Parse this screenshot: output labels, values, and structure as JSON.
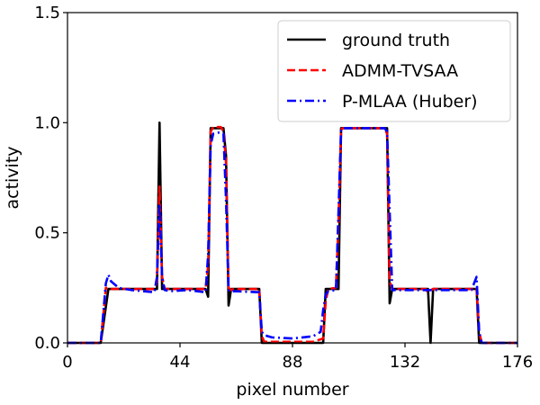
{
  "chart_data": {
    "type": "line",
    "title": "",
    "xlabel": "pixel number",
    "ylabel": "activity",
    "xlim": [
      0,
      176
    ],
    "ylim": [
      0,
      1.5
    ],
    "xticks": [
      0,
      44,
      88,
      132,
      176
    ],
    "xtick_labels": [
      "0",
      "44",
      "88",
      "132",
      "176"
    ],
    "yticks": [
      0.0,
      0.5,
      1.0,
      1.5
    ],
    "ytick_labels": [
      "0.0",
      "0.5",
      "1.0",
      "1.5"
    ],
    "grid": false,
    "legend_position": "top-right",
    "series": [
      {
        "name": "ground truth",
        "color": "#000000",
        "style": "solid",
        "x": [
          0,
          13,
          16,
          35,
          36,
          37,
          38,
          39,
          54,
          55,
          56,
          61,
          62,
          63,
          64,
          65,
          75,
          76,
          77,
          100,
          101,
          102,
          106,
          107,
          108,
          124,
          125,
          126,
          127,
          141,
          142,
          143,
          144,
          160,
          161,
          162,
          176
        ],
        "y": [
          0,
          0,
          0.245,
          0.245,
          1.0,
          0.245,
          0.245,
          0.245,
          0.245,
          0.21,
          0.975,
          0.975,
          0.85,
          0.17,
          0.245,
          0.245,
          0.245,
          0.0,
          0.0,
          0.0,
          0.245,
          0.245,
          0.245,
          0.975,
          0.975,
          0.975,
          0.975,
          0.18,
          0.245,
          0.245,
          0.0,
          0.245,
          0.245,
          0.245,
          0.0,
          0.0,
          0.0
        ]
      },
      {
        "name": "ADMM-TVSAA",
        "color": "#ff0000",
        "style": "dashed",
        "x": [
          0,
          13,
          15,
          17,
          34,
          35,
          36,
          37,
          38,
          54,
          55,
          56,
          57,
          60,
          61,
          62,
          63,
          64,
          65,
          75,
          76,
          77,
          80,
          88,
          96,
          100,
          101,
          102,
          105,
          106,
          107,
          108,
          124,
          125,
          126,
          127,
          140,
          141,
          142,
          143,
          159,
          160,
          161,
          162,
          176
        ],
        "y": [
          0,
          0,
          0.25,
          0.245,
          0.245,
          0.28,
          0.71,
          0.3,
          0.245,
          0.245,
          0.35,
          0.96,
          0.98,
          0.98,
          0.96,
          0.82,
          0.25,
          0.24,
          0.245,
          0.245,
          0.03,
          0.005,
          0.005,
          0.005,
          0.005,
          0.02,
          0.19,
          0.245,
          0.25,
          0.55,
          0.97,
          0.975,
          0.975,
          0.95,
          0.28,
          0.245,
          0.245,
          0.23,
          0.24,
          0.245,
          0.245,
          0.25,
          0.05,
          0.0,
          0.0
        ]
      },
      {
        "name": "P-MLAA (Huber)",
        "color": "#0000ff",
        "style": "dashdot",
        "x": [
          0,
          13,
          15,
          16,
          17,
          20,
          25,
          34,
          35,
          36,
          37,
          38,
          40,
          47,
          54,
          55,
          56,
          57,
          59,
          61,
          62,
          63,
          64,
          65,
          75,
          76,
          77,
          80,
          88,
          96,
          99,
          100,
          101,
          102,
          105,
          106,
          107,
          108,
          124,
          125,
          126,
          127,
          141,
          143,
          150,
          158,
          159,
          160,
          161,
          162,
          176
        ],
        "y": [
          0,
          0,
          0.27,
          0.31,
          0.28,
          0.25,
          0.24,
          0.23,
          0.3,
          0.63,
          0.3,
          0.24,
          0.235,
          0.24,
          0.23,
          0.4,
          0.9,
          0.95,
          0.955,
          0.95,
          0.65,
          0.24,
          0.23,
          0.235,
          0.23,
          0.05,
          0.035,
          0.025,
          0.02,
          0.03,
          0.05,
          0.15,
          0.22,
          0.235,
          0.24,
          0.6,
          0.97,
          0.975,
          0.975,
          0.96,
          0.6,
          0.24,
          0.24,
          0.24,
          0.24,
          0.24,
          0.27,
          0.3,
          0.05,
          0.0,
          0.0
        ]
      }
    ]
  }
}
